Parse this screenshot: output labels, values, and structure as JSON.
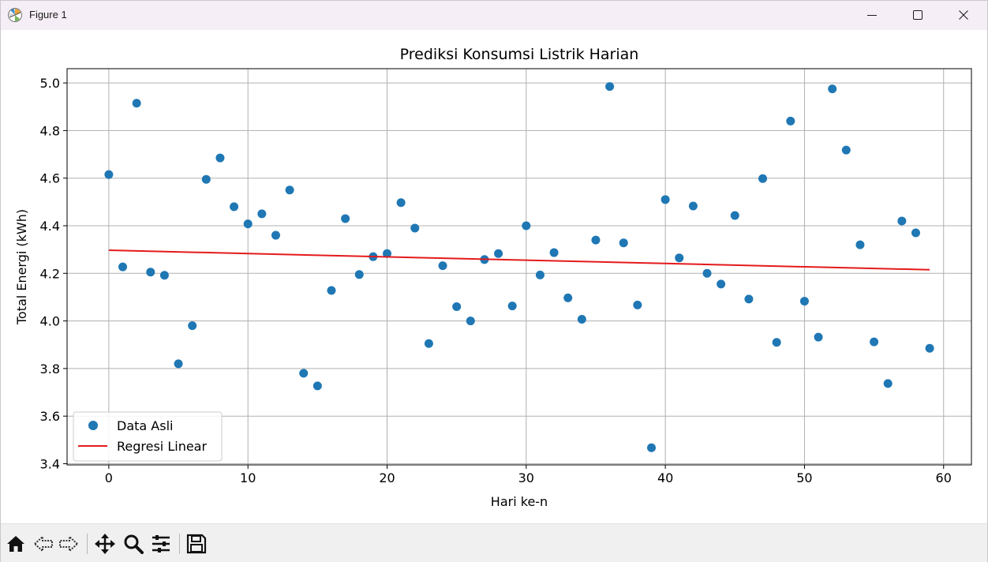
{
  "window": {
    "title": "Figure 1"
  },
  "toolbar": {
    "icons": [
      "home-icon",
      "back-icon",
      "forward-icon",
      "pan-icon",
      "zoom-icon",
      "configure-subplots-icon",
      "save-icon"
    ]
  },
  "colors": {
    "scatter": "#1f77b4",
    "regression": "#e41a1c",
    "grid": "#b0b0b0",
    "titlebar": "#f5eef6",
    "toolbar": "#f0f0f0"
  },
  "chart_data": {
    "type": "scatter",
    "title": "Prediksi Konsumsi Listrik Harian",
    "xlabel": "Hari ke-n",
    "ylabel": "Total Energi (kWh)",
    "xlim": [
      -3,
      62
    ],
    "ylim": [
      3.395,
      5.06
    ],
    "xticks": [
      0,
      10,
      20,
      30,
      40,
      50,
      60
    ],
    "xtick_labels": [
      "0",
      "10",
      "20",
      "30",
      "40",
      "50",
      "60"
    ],
    "yticks": [
      3.4,
      3.6,
      3.8,
      4.0,
      4.2,
      4.4,
      4.6,
      4.8,
      5.0
    ],
    "ytick_labels": [
      "3.4",
      "3.6",
      "3.8",
      "4.0",
      "4.2",
      "4.4",
      "4.6",
      "4.8",
      "5.0"
    ],
    "grid": true,
    "legend_position": "lower-left",
    "series": [
      {
        "name": "Data Asli",
        "kind": "scatter",
        "color": "#1f77b4",
        "x": [
          0,
          1,
          2,
          3,
          4,
          5,
          6,
          7,
          8,
          9,
          10,
          11,
          12,
          13,
          14,
          15,
          16,
          17,
          18,
          19,
          20,
          21,
          22,
          23,
          24,
          25,
          26,
          27,
          28,
          29,
          30,
          31,
          32,
          33,
          34,
          35,
          36,
          37,
          38,
          39,
          40,
          41,
          42,
          43,
          44,
          45,
          46,
          47,
          48,
          49,
          50,
          51,
          52,
          53,
          54,
          55,
          56,
          57,
          58,
          59
        ],
        "y": [
          4.615,
          4.227,
          4.915,
          4.205,
          4.192,
          3.82,
          3.98,
          4.595,
          4.685,
          4.48,
          4.408,
          4.45,
          4.36,
          4.55,
          3.78,
          3.727,
          4.128,
          4.43,
          4.195,
          4.27,
          4.283,
          4.497,
          4.39,
          3.905,
          4.232,
          4.06,
          4.0,
          4.258,
          4.283,
          4.063,
          4.4,
          4.193,
          4.287,
          4.097,
          4.007,
          4.34,
          4.985,
          4.328,
          4.067,
          3.467,
          4.51,
          4.265,
          4.483,
          4.2,
          4.155,
          4.443,
          4.092,
          4.598,
          3.91,
          4.84,
          4.083,
          3.932,
          4.975,
          4.718,
          4.32,
          3.912,
          3.737,
          4.42,
          4.37,
          3.885
        ]
      },
      {
        "name": "Regresi Linear",
        "kind": "line",
        "color": "#e41a1c",
        "x": [
          0,
          59
        ],
        "y": [
          4.297,
          4.215
        ]
      }
    ]
  }
}
